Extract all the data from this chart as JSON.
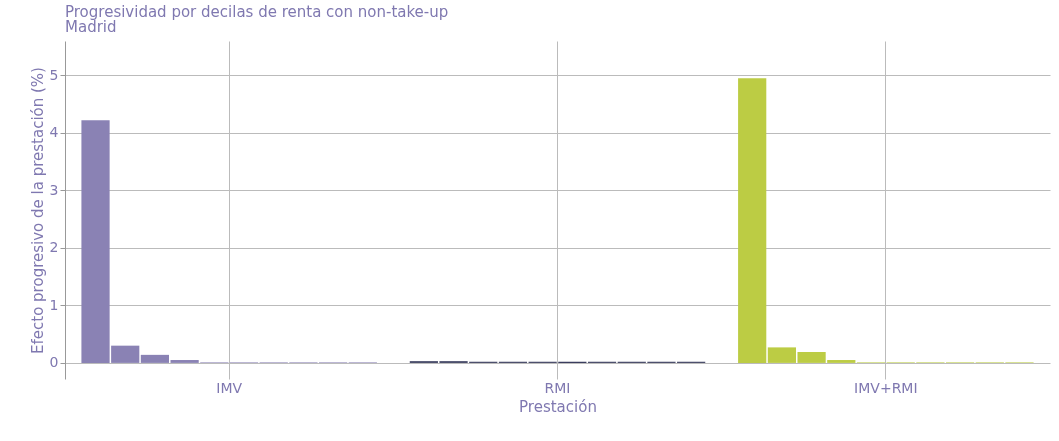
{
  "chart_data": {
    "type": "bar",
    "title": "Progresividad por decilas de renta con non-take-up",
    "subtitle": "Madrid",
    "xlabel": "Prestación",
    "ylabel": "Efecto progresivo de la prestación (%)",
    "categories": [
      "IMV",
      "RMI",
      "IMV+RMI"
    ],
    "series": [
      {
        "colors": [
          "#8a82b4",
          "#3a3d5e",
          "#bccc44"
        ],
        "values": [
          4.22,
          0.03,
          4.95
        ]
      },
      {
        "colors": [
          "#8a82b4",
          "#3a3d5e",
          "#bccc44"
        ],
        "values": [
          0.3,
          0.03,
          0.27
        ]
      },
      {
        "colors": [
          "#8a82b4",
          "#3a3d5e",
          "#bccc44"
        ],
        "values": [
          0.14,
          0.02,
          0.19
        ]
      },
      {
        "colors": [
          "#8a82b4",
          "#3a3d5e",
          "#bccc44"
        ],
        "values": [
          0.05,
          0.02,
          0.05
        ]
      },
      {
        "colors": [
          "#8a82b4",
          "#3a3d5e",
          "#bccc44"
        ],
        "values": [
          0.01,
          0.02,
          0.01
        ]
      },
      {
        "colors": [
          "#8a82b4",
          "#3a3d5e",
          "#bccc44"
        ],
        "values": [
          0.01,
          0.02,
          0.01
        ]
      },
      {
        "colors": [
          "#8a82b4",
          "#3a3d5e",
          "#bccc44"
        ],
        "values": [
          0.01,
          0.02,
          0.01
        ]
      },
      {
        "colors": [
          "#8a82b4",
          "#3a3d5e",
          "#bccc44"
        ],
        "values": [
          0.01,
          0.02,
          0.01
        ]
      },
      {
        "colors": [
          "#8a82b4",
          "#3a3d5e",
          "#bccc44"
        ],
        "values": [
          0.01,
          0.02,
          0.01
        ]
      },
      {
        "colors": [
          "#8a82b4",
          "#3a3d5e",
          "#bccc44"
        ],
        "values": [
          0.01,
          0.02,
          0.01
        ]
      }
    ],
    "ylim": [
      -0.28,
      5.6
    ],
    "yticks": [
      0,
      1,
      2,
      3,
      4,
      5
    ],
    "grid": true
  }
}
